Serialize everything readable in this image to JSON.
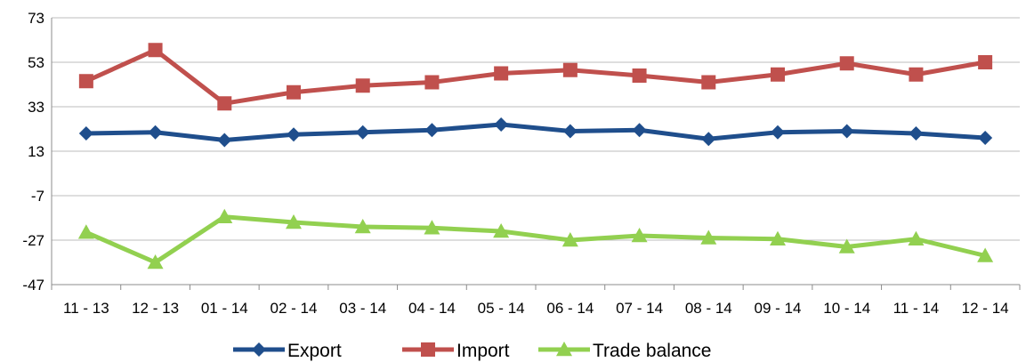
{
  "chart_data": {
    "type": "line",
    "title": "",
    "xlabel": "",
    "ylabel": "",
    "categories": [
      "11 - 13",
      "12 - 13",
      "01 - 14",
      "02 - 14",
      "03 - 14",
      "04 - 14",
      "05 - 14",
      "06 - 14",
      "07 - 14",
      "08 - 14",
      "09 - 14",
      "10 - 14",
      "11 - 14",
      "12 - 14"
    ],
    "yticks": [
      73,
      53,
      33,
      13,
      -7,
      -27,
      -47
    ],
    "ylim": [
      -47,
      73
    ],
    "grid": "horizontal",
    "legend_position": "bottom",
    "series": [
      {
        "name": "Export",
        "color": "#1f4e8c",
        "marker": "diamond",
        "values": [
          21,
          21.5,
          18,
          20.5,
          21.5,
          22.5,
          25,
          22,
          22.5,
          18.5,
          21.5,
          22,
          21,
          19
        ]
      },
      {
        "name": "Import",
        "color": "#c0504d",
        "marker": "square",
        "values": [
          44.5,
          58.5,
          34.5,
          39.5,
          42.5,
          44,
          48,
          49.5,
          47,
          44,
          47.5,
          52.5,
          47.5,
          53
        ]
      },
      {
        "name": "Trade balance",
        "color": "#92d050",
        "marker": "triangle",
        "values": [
          -23.5,
          -37,
          -16.5,
          -19,
          -21,
          -21.5,
          -23,
          -27,
          -25,
          -26,
          -26.5,
          -30,
          -26.5,
          -34
        ]
      }
    ]
  }
}
